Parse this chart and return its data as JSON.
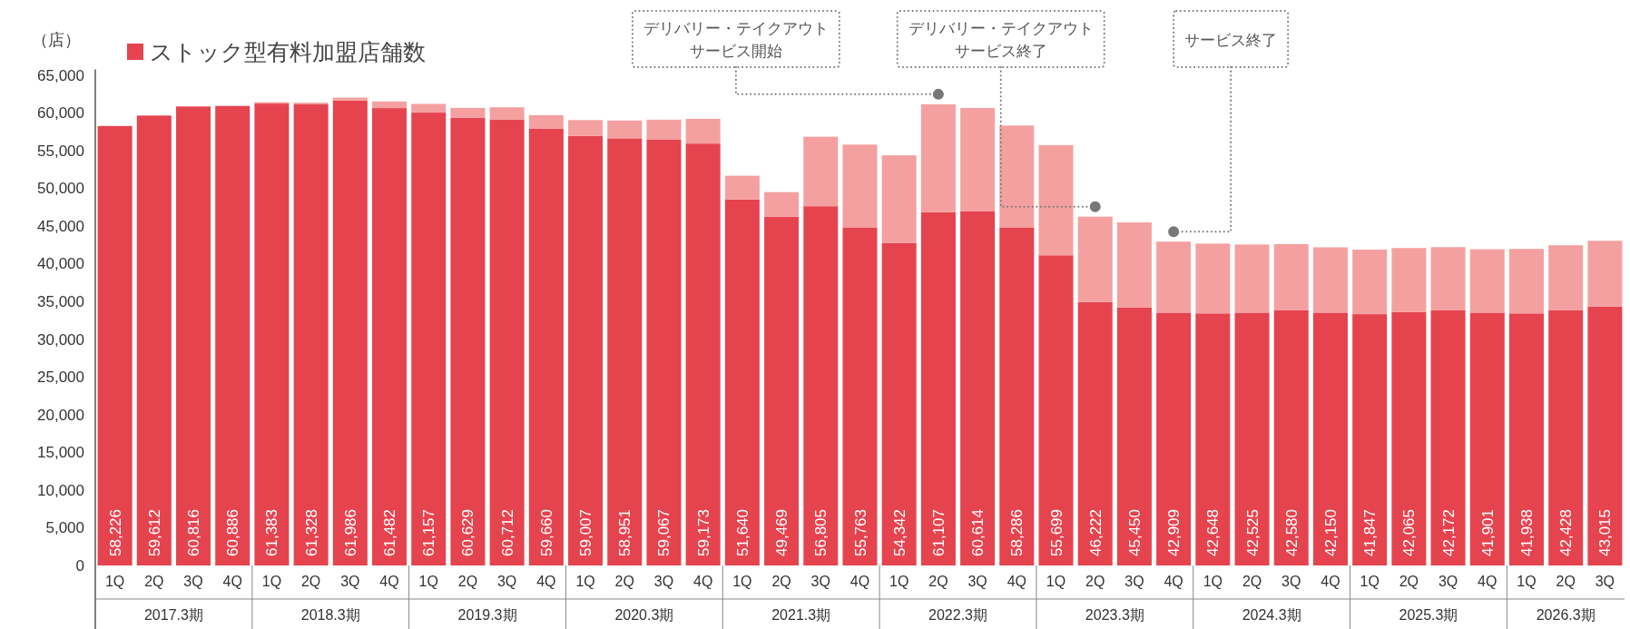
{
  "chart_data": {
    "type": "bar",
    "stacked": true,
    "legend": "top left",
    "ylabel": "（店）",
    "categories": [
      "1Q",
      "2Q",
      "3Q",
      "4Q",
      "1Q",
      "2Q",
      "3Q",
      "4Q",
      "1Q",
      "2Q",
      "3Q",
      "4Q",
      "1Q",
      "2Q",
      "3Q",
      "4Q",
      "1Q",
      "2Q",
      "3Q",
      "4Q",
      "1Q",
      "2Q",
      "3Q",
      "4Q",
      "1Q",
      "2Q",
      "3Q",
      "4Q",
      "1Q",
      "2Q",
      "3Q",
      "4Q",
      "1Q",
      "2Q",
      "3Q",
      "4Q",
      "1Q",
      "2Q",
      "3Q"
    ],
    "series": [
      {
        "name": "ストック型有料加盟店舗数",
        "color": "#e5444f",
        "values": [
          58226,
          59612,
          60816,
          60886,
          61200,
          61100,
          61600,
          60600,
          60000,
          59300,
          59100,
          57900,
          56900,
          56600,
          56400,
          55900,
          48500,
          46200,
          47600,
          44800,
          42700,
          46800,
          46900,
          44800,
          41100,
          34900,
          34200,
          33500,
          33400,
          33500,
          33800,
          33500,
          33300,
          33600,
          33800,
          33500,
          33400,
          33800,
          34300
        ]
      },
      {
        "color": "#f5a0a0",
        "values": [
          0,
          0,
          0,
          0,
          183,
          228,
          386,
          882,
          1157,
          1329,
          1612,
          1760,
          2107,
          2351,
          2667,
          3273,
          3140,
          3269,
          9205,
          10963,
          11642,
          14307,
          13714,
          13486,
          14599,
          11322,
          11250,
          9409,
          9248,
          9025,
          8780,
          8650,
          8547,
          8465,
          8372,
          8401,
          8538,
          8628,
          8715
        ]
      }
    ],
    "totals": [
      "58,226",
      "59,612",
      "60,816",
      "60,886",
      "61,383",
      "61,328",
      "61,986",
      "61,482",
      "61,157",
      "60,629",
      "60,712",
      "59,660",
      "59,007",
      "58,951",
      "59,067",
      "59,173",
      "51,640",
      "49,469",
      "56,805",
      "55,763",
      "54,342",
      "61,107",
      "60,614",
      "58,286",
      "55,699",
      "46,222",
      "45,450",
      "42,909",
      "42,648",
      "42,525",
      "42,580",
      "42,150",
      "41,847",
      "42,065",
      "42,172",
      "41,901",
      "41,938",
      "42,428",
      "43,015"
    ],
    "ylim": [
      0,
      65000
    ],
    "yticks": [
      {
        "value": 0,
        "label": "0"
      },
      {
        "value": 5000,
        "label": "5,000"
      },
      {
        "value": 10000,
        "label": "10,000"
      },
      {
        "value": 15000,
        "label": "15,000"
      },
      {
        "value": 20000,
        "label": "20,000"
      },
      {
        "value": 25000,
        "label": "25,000"
      },
      {
        "value": 30000,
        "label": "30,000"
      },
      {
        "value": 35000,
        "label": "35,000"
      },
      {
        "value": 40000,
        "label": "40,000"
      },
      {
        "value": 45000,
        "label": "45,000"
      },
      {
        "value": 50000,
        "label": "50,000"
      },
      {
        "value": 55000,
        "label": "55,000"
      },
      {
        "value": 60000,
        "label": "60,000"
      },
      {
        "value": 65000,
        "label": "65,000"
      }
    ],
    "annotations": [
      "デリバリー・テイクアウトサービス開始",
      "デリバリー・テイクアウトサービス終了",
      "サービス終了",
      "2017.3期",
      "2018.3期",
      "2019.3期",
      "2020.3期",
      "2021.3期",
      "2022.3期",
      "2023.3期",
      "2024.3期",
      "2025.3期",
      "2026.3期"
    ]
  }
}
